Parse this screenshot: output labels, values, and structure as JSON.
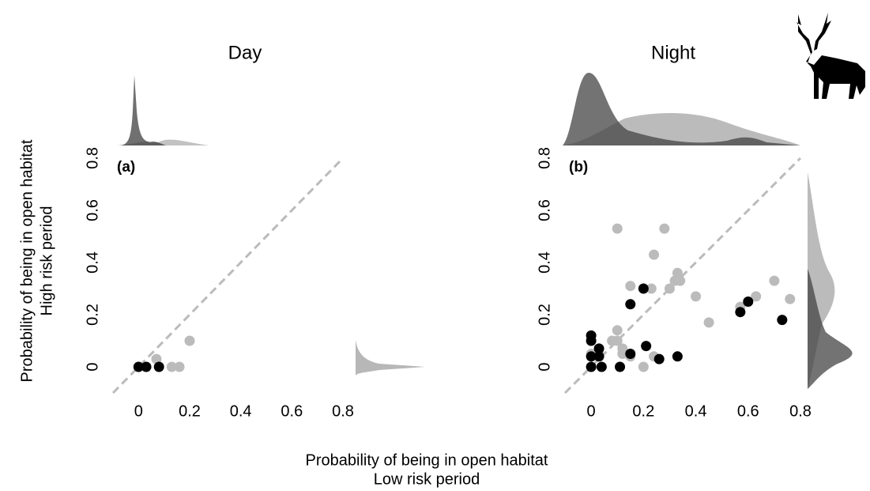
{
  "chart_data": [
    {
      "type": "scatter",
      "title": "Day",
      "panel_label": "(a)",
      "xlim": [
        -0.1,
        0.8
      ],
      "ylim": [
        -0.1,
        0.8
      ],
      "xticks": [
        0,
        0.2,
        0.4,
        0.6,
        0.8
      ],
      "yticks": [
        0,
        0.2,
        0.4,
        0.6,
        0.8
      ],
      "series": [
        {
          "color": "#bbbbbb",
          "x": [
            0,
            0.07,
            0.13,
            0.16,
            0.2
          ],
          "values": [
            0,
            0.03,
            0,
            0,
            0.1
          ]
        },
        {
          "color": "#000000",
          "x": [
            0,
            0.03,
            0.08
          ],
          "values": [
            0,
            0,
            0
          ]
        }
      ]
    },
    {
      "type": "scatter",
      "title": "Night",
      "panel_label": "(b)",
      "xlim": [
        -0.1,
        0.8
      ],
      "ylim": [
        -0.1,
        0.8
      ],
      "xticks": [
        0,
        0.2,
        0.4,
        0.6,
        0.8
      ],
      "yticks": [
        0,
        0.2,
        0.4,
        0.6,
        0.8
      ],
      "series": [
        {
          "color": "#bbbbbb",
          "x": [
            0.1,
            0.28,
            0.24,
            0.15,
            0.33,
            0.34,
            0.32,
            0.3,
            0.23,
            0.4,
            0.45,
            0.57,
            0.63,
            0.7,
            0.76,
            0.1,
            0.1,
            0.08,
            0.12,
            0.15,
            0.2,
            0.0,
            0.03,
            0.24,
            0.12
          ],
          "values": [
            0.53,
            0.53,
            0.43,
            0.31,
            0.36,
            0.33,
            0.33,
            0.3,
            0.3,
            0.27,
            0.17,
            0.23,
            0.27,
            0.33,
            0.26,
            0.14,
            0.1,
            0.1,
            0.07,
            0.04,
            0.0,
            0.05,
            0.05,
            0.04,
            0.05
          ]
        },
        {
          "color": "#000000",
          "x": [
            0,
            0,
            0,
            0,
            0.03,
            0.03,
            0.04,
            0.11,
            0.15,
            0.2,
            0.15,
            0.21,
            0.26,
            0.33,
            0.57,
            0.6,
            0.73
          ],
          "values": [
            0.12,
            0.1,
            0.04,
            0.0,
            0.07,
            0.04,
            0,
            0,
            0.24,
            0.3,
            0.05,
            0.08,
            0.03,
            0.04,
            0.21,
            0.25,
            0.18
          ]
        }
      ]
    }
  ],
  "axis_labels": {
    "x": [
      "Probability of being in open habitat",
      "Low risk period"
    ],
    "y": [
      "Probability of being in open habitat",
      "High risk period"
    ]
  }
}
